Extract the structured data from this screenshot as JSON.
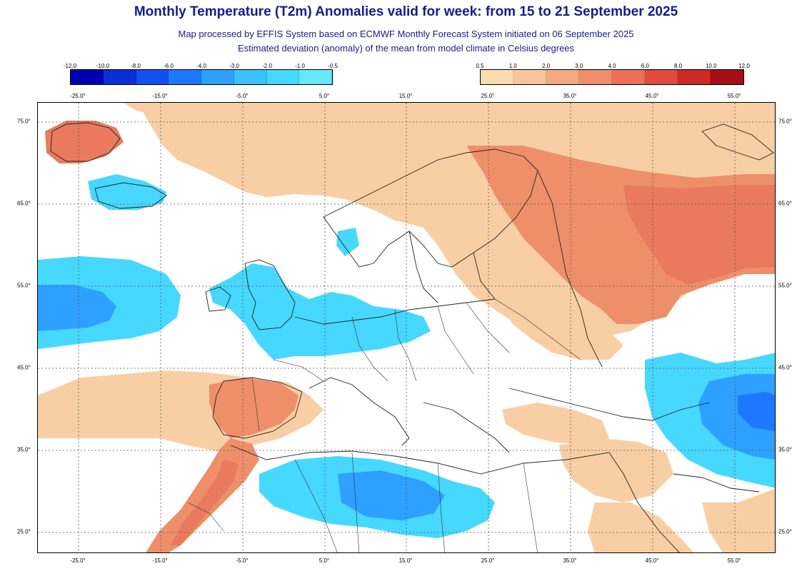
{
  "header": {
    "title": "Monthly Temperature (T2m) Anomalies valid for week: from 15 to 21 September 2025",
    "subtitle1": "Map processed by EFFIS System based on ECMWF Monthly Forecast System initiated on 06 September 2025",
    "subtitle2": "Estimated deviation (anomaly) of the mean from model climate in Celsius degrees"
  },
  "legend_cold": {
    "labels": [
      "-12.0",
      "-10.0",
      "-8.0",
      "-6.0",
      "-4.0",
      "-3.0",
      "-2.0",
      "-1.0",
      "-0.5"
    ],
    "colors": [
      "#0000b0",
      "#0a2fd6",
      "#1450f0",
      "#1e78ff",
      "#2ea0ff",
      "#3cc0ff",
      "#46d8ff",
      "#66e8ff"
    ]
  },
  "legend_warm": {
    "labels": [
      "0.5",
      "1.0",
      "2.0",
      "3.0",
      "4.0",
      "6.0",
      "8.0",
      "10.0",
      "12.0"
    ],
    "colors": [
      "#fbdcb0",
      "#f6c59b",
      "#f2aa83",
      "#ee8f6a",
      "#ea7056",
      "#e04b3d",
      "#cc2a26",
      "#a50f15"
    ]
  },
  "lon_labels_top": [
    "-25.0°",
    "-15.0°",
    "-5.0°",
    "5.0°",
    "15.0°",
    "25.0°",
    "35.0°",
    "45.0°",
    "55.0°"
  ],
  "lon_labels_bottom": [
    "-25.0°",
    "-15.0°",
    "-5.0°",
    "5.0°",
    "15.0°",
    "25.0°",
    "35.0°",
    "45.0°",
    "55.0°"
  ],
  "lat_labels": [
    "75.0°",
    "65.0°",
    "55.0°",
    "45.0°",
    "35.0°",
    "25.0°"
  ],
  "map": {
    "type": "filled-contour anomaly map",
    "lon_range": [
      -30,
      60
    ],
    "lat_range": [
      22,
      77
    ],
    "grid_step_degrees": 10,
    "regions": [
      {
        "area": "Scandinavia, Baltics, western Russia, Arctic",
        "anomaly_class": "0.5 to 3.0",
        "color": "#f6c59b"
      },
      {
        "area": "Northwestern Russia",
        "anomaly_class": "3.0 to 4.0",
        "color": "#ee8f6a"
      },
      {
        "area": "Iberian Peninsula, Morocco, Western Sahara",
        "anomaly_class": "2.0 to 4.0",
        "color": "#ee8f6a"
      },
      {
        "area": "British Isles, France, Benelux, Germany",
        "anomaly_class": "-0.5 to -2.0",
        "color": "#46d8ff"
      },
      {
        "area": "North Atlantic west of Ireland",
        "anomaly_class": "-1.0 to -3.0",
        "color": "#3cc0ff"
      },
      {
        "area": "Algeria, Libya (Sahara)",
        "anomaly_class": "-0.5 to -3.0",
        "color": "#46d8ff"
      },
      {
        "area": "Turkey, Caucasus, Caspian, Iran",
        "anomaly_class": "-1.0 to -4.0",
        "color": "#2ea0ff"
      },
      {
        "area": "Central Europe, Balkans, Mediterranean",
        "anomaly_class": "-0.5 to 0.5",
        "color": "#ffffff"
      }
    ]
  }
}
